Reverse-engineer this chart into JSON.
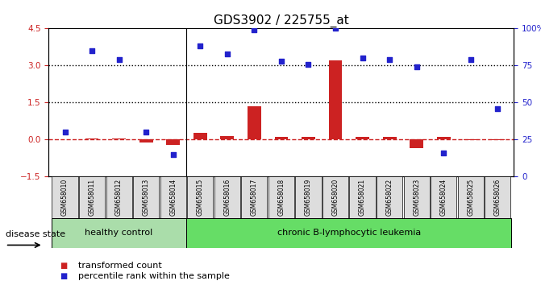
{
  "title": "GDS3902 / 225755_at",
  "samples": [
    "GSM658010",
    "GSM658011",
    "GSM658012",
    "GSM658013",
    "GSM658014",
    "GSM658015",
    "GSM658016",
    "GSM658017",
    "GSM658018",
    "GSM658019",
    "GSM658020",
    "GSM658021",
    "GSM658022",
    "GSM658023",
    "GSM658024",
    "GSM658025",
    "GSM658026"
  ],
  "transformed_count": [
    0.02,
    0.05,
    0.05,
    -0.1,
    -0.2,
    0.28,
    0.15,
    1.35,
    0.12,
    0.12,
    3.2,
    0.12,
    0.1,
    -0.35,
    0.12,
    -0.02,
    -0.02
  ],
  "percentile_rank": [
    30,
    85,
    79,
    30,
    15,
    88,
    83,
    99,
    78,
    76,
    100,
    80,
    79,
    74,
    16,
    79,
    46
  ],
  "left_ylim": [
    -1.5,
    4.5
  ],
  "right_ylim": [
    0,
    100
  ],
  "left_yticks": [
    -1.5,
    0,
    1.5,
    3,
    4.5
  ],
  "right_yticks": [
    0,
    25,
    50,
    75,
    100
  ],
  "right_yticklabels": [
    "0",
    "25",
    "50",
    "75",
    "100%"
  ],
  "hlines": [
    3.0,
    1.5
  ],
  "hline_y0": 0.0,
  "bar_color": "#cc2222",
  "dot_color": "#2222cc",
  "healthy_count": 5,
  "healthy_label": "healthy control",
  "disease_label": "chronic B-lymphocytic leukemia",
  "disease_state_label": "disease state",
  "legend_bar_label": "transformed count",
  "legend_dot_label": "percentile rank within the sample",
  "healthy_color": "#aaddaa",
  "disease_color": "#66dd66",
  "bg_color": "#ffffff",
  "dotted_line_color": "#000000",
  "dashed_line_color": "#cc2222",
  "title_fontsize": 11,
  "tick_fontsize": 7.5,
  "label_fontsize": 8,
  "legend_fontsize": 8
}
